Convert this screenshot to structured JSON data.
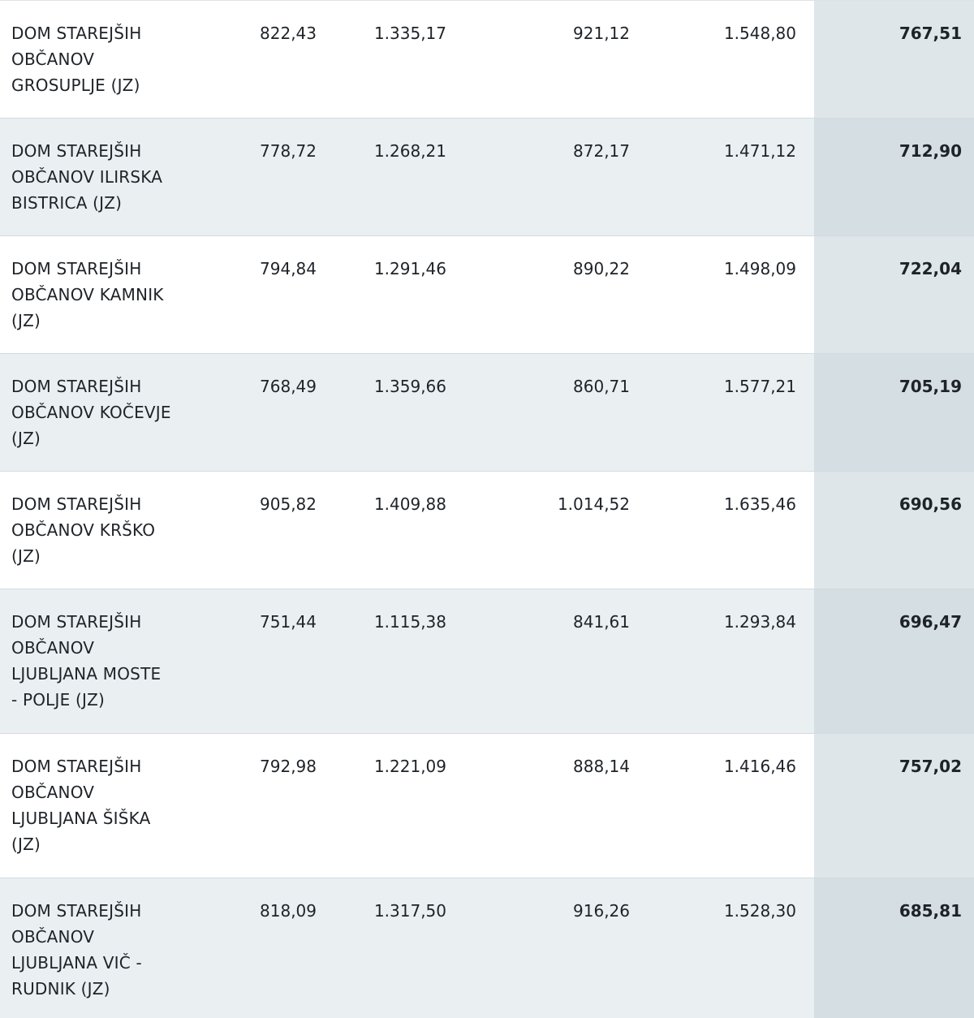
{
  "table": {
    "rows": [
      {
        "name": "DOM STAREJŠIH OBČANOV GROSUPLJE (JZ)",
        "v1": "822,43",
        "v2": "1.335,17",
        "v3": "921,12",
        "v4": "1.548,80",
        "v5": "767,51"
      },
      {
        "name": "DOM STAREJŠIH OBČANOV ILIRSKA BISTRICA (JZ)",
        "v1": "778,72",
        "v2": "1.268,21",
        "v3": "872,17",
        "v4": "1.471,12",
        "v5": "712,90"
      },
      {
        "name": "DOM STAREJŠIH OBČANOV KAMNIK (JZ)",
        "v1": "794,84",
        "v2": "1.291,46",
        "v3": "890,22",
        "v4": "1.498,09",
        "v5": "722,04"
      },
      {
        "name": "DOM STAREJŠIH OBČANOV KOČEVJE (JZ)",
        "v1": "768,49",
        "v2": "1.359,66",
        "v3": "860,71",
        "v4": "1.577,21",
        "v5": "705,19"
      },
      {
        "name": "DOM STAREJŠIH OBČANOV KRŠKO (JZ)",
        "v1": "905,82",
        "v2": "1.409,88",
        "v3": "1.014,52",
        "v4": "1.635,46",
        "v5": "690,56"
      },
      {
        "name": "DOM STAREJŠIH OBČANOV LJUBLJANA MOSTE - POLJE (JZ)",
        "v1": "751,44",
        "v2": "1.115,38",
        "v3": "841,61",
        "v4": "1.293,84",
        "v5": "696,47"
      },
      {
        "name": "DOM STAREJŠIH OBČANOV LJUBLJANA ŠIŠKA (JZ)",
        "v1": "792,98",
        "v2": "1.221,09",
        "v3": "888,14",
        "v4": "1.416,46",
        "v5": "757,02"
      },
      {
        "name": "DOM STAREJŠIH OBČANOV LJUBLJANA VIČ - RUDNIK (JZ)",
        "v1": "818,09",
        "v2": "1.317,50",
        "v3": "916,26",
        "v4": "1.528,30",
        "v5": "685,81"
      }
    ]
  }
}
